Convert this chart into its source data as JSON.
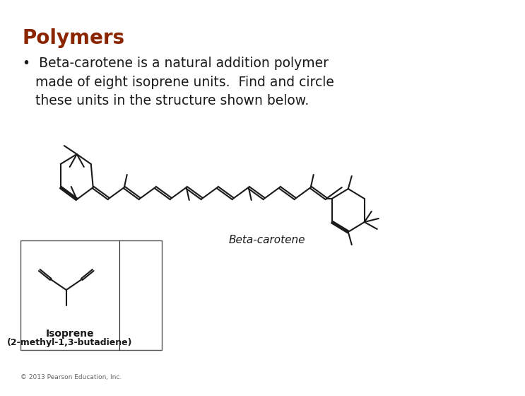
{
  "title": "Polymers",
  "title_color": "#8B2500",
  "title_fontsize": 20,
  "bullet_text": "Beta-carotene is a natural addition polymer\nmade of eight isoprene units.  Find and circle\nthese units in the structure shown below.",
  "bullet_fontsize": 13.5,
  "beta_carotene_label": "Beta-carotene",
  "isoprene_label1": "Isoprene",
  "isoprene_label2": "(2-methyl-1,3-butadiene)",
  "copyright": "© 2013 Pearson Education, Inc.",
  "bg_color": "#ffffff",
  "line_color": "#1a1a1a",
  "line_width": 1.5,
  "fig_width": 7.2,
  "fig_height": 5.4
}
